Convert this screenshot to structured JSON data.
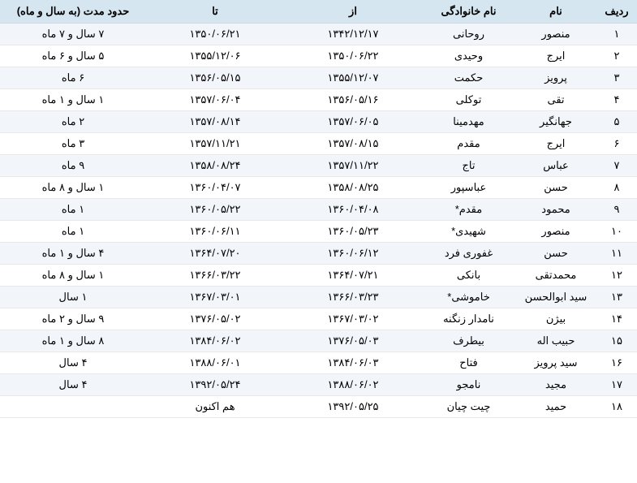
{
  "table": {
    "headers": {
      "row": "ردیف",
      "name": "نام",
      "surname": "نام خانوادگی",
      "from": "از",
      "to": "تا",
      "duration": "حدود مدت (به سال و ماه)"
    },
    "colors": {
      "header_bg": "#d6e6f0",
      "row_odd_bg": "#f2f6fa",
      "row_even_bg": "#ffffff",
      "text": "#000000"
    },
    "rows": [
      {
        "row": "۱",
        "name": "منصور",
        "surname": "روحانی",
        "from": "۱۳۴۲/۱۲/۱۷",
        "to": "۱۳۵۰/۰۶/۲۱",
        "duration": "۷ سال و ۷ ماه"
      },
      {
        "row": "۲",
        "name": "ایرج",
        "surname": "وحیدی",
        "from": "۱۳۵۰/۰۶/۲۲",
        "to": "۱۳۵۵/۱۲/۰۶",
        "duration": "۵ سال و ۶ ماه"
      },
      {
        "row": "۳",
        "name": "پرویز",
        "surname": "حکمت",
        "from": "۱۳۵۵/۱۲/۰۷",
        "to": "۱۳۵۶/۰۵/۱۵",
        "duration": "۶ ماه"
      },
      {
        "row": "۴",
        "name": "تقی",
        "surname": "توکلی",
        "from": "۱۳۵۶/۰۵/۱۶",
        "to": "۱۳۵۷/۰۶/۰۴",
        "duration": "۱ سال و ۱ ماه"
      },
      {
        "row": "۵",
        "name": "جهانگیر",
        "surname": "مهدمینا",
        "from": "۱۳۵۷/۰۶/۰۵",
        "to": "۱۳۵۷/۰۸/۱۴",
        "duration": "۲ ماه"
      },
      {
        "row": "۶",
        "name": "ایرج",
        "surname": "مقدم",
        "from": "۱۳۵۷/۰۸/۱۵",
        "to": "۱۳۵۷/۱۱/۲۱",
        "duration": "۳ ماه"
      },
      {
        "row": "۷",
        "name": "عباس",
        "surname": "تاج",
        "from": "۱۳۵۷/۱۱/۲۲",
        "to": "۱۳۵۸/۰۸/۲۴",
        "duration": "۹ ماه"
      },
      {
        "row": "۸",
        "name": "حسن",
        "surname": "عباسپور",
        "from": "۱۳۵۸/۰۸/۲۵",
        "to": "۱۳۶۰/۰۴/۰۷",
        "duration": "۱ سال و ۸ ماه"
      },
      {
        "row": "۹",
        "name": "محمود",
        "surname": "مقدم*",
        "from": "۱۳۶۰/۰۴/۰۸",
        "to": "۱۳۶۰/۰۵/۲۲",
        "duration": "۱ ماه"
      },
      {
        "row": "۱۰",
        "name": "منصور",
        "surname": "شهیدی*",
        "from": "۱۳۶۰/۰۵/۲۳",
        "to": "۱۳۶۰/۰۶/۱۱",
        "duration": "۱ ماه"
      },
      {
        "row": "۱۱",
        "name": "حسن",
        "surname": "غفوری فرد",
        "from": "۱۳۶۰/۰۶/۱۲",
        "to": "۱۳۶۴/۰۷/۲۰",
        "duration": "۴ سال و ۱ ماه"
      },
      {
        "row": "۱۲",
        "name": "محمدتقی",
        "surname": "بانکی",
        "from": "۱۳۶۴/۰۷/۲۱",
        "to": "۱۳۶۶/۰۳/۲۲",
        "duration": "۱ سال و ۸ ماه"
      },
      {
        "row": "۱۳",
        "name": "سید ابوالحسن",
        "surname": "خاموشی*",
        "from": "۱۳۶۶/۰۳/۲۳",
        "to": "۱۳۶۷/۰۳/۰۱",
        "duration": "۱ سال"
      },
      {
        "row": "۱۴",
        "name": "بیژن",
        "surname": "نامدار زنگنه",
        "from": "۱۳۶۷/۰۳/۰۲",
        "to": "۱۳۷۶/۰۵/۰۲",
        "duration": "۹ سال و ۲ ماه"
      },
      {
        "row": "۱۵",
        "name": "حبیب اله",
        "surname": "بیطرف",
        "from": "۱۳۷۶/۰۵/۰۳",
        "to": "۱۳۸۴/۰۶/۰۲",
        "duration": "۸ سال و ۱ ماه"
      },
      {
        "row": "۱۶",
        "name": "سید پرویز",
        "surname": "فتاح",
        "from": "۱۳۸۴/۰۶/۰۳",
        "to": "۱۳۸۸/۰۶/۰۱",
        "duration": "۴ سال"
      },
      {
        "row": "۱۷",
        "name": "مجید",
        "surname": "نامجو",
        "from": "۱۳۸۸/۰۶/۰۲",
        "to": "۱۳۹۲/۰۵/۲۴",
        "duration": "۴ سال"
      },
      {
        "row": "۱۸",
        "name": "حمید",
        "surname": "چیت چیان",
        "from": "۱۳۹۲/۰۵/۲۵",
        "to": "هم اکنون",
        "duration": ""
      }
    ]
  }
}
